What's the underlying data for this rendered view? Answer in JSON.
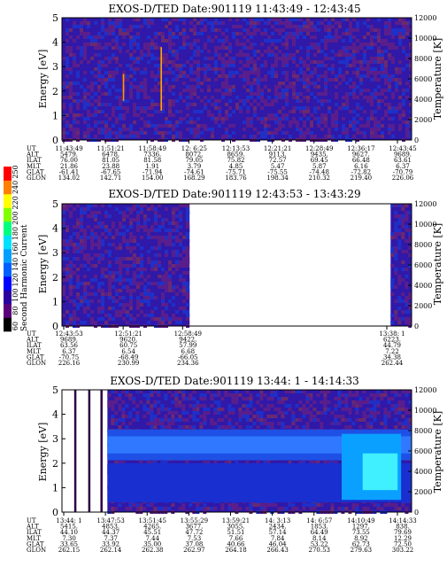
{
  "colorbar": {
    "title": "Second Harmonic Current",
    "ticks": [
      "60",
      "80",
      "100",
      "120",
      "140",
      "160",
      "180",
      "200",
      "220",
      "240",
      "250"
    ],
    "colors": [
      "#000000",
      "#5a007a",
      "#2a00a0",
      "#0000ff",
      "#0060ff",
      "#00a0ff",
      "#00e0ff",
      "#00ff80",
      "#80ff00",
      "#ffff00",
      "#ff8000",
      "#ff0000"
    ]
  },
  "chart_data": [
    {
      "type": "heatmap",
      "title": "EXOS-D/TED   Date:901119   11:43:49 - 12:43:45",
      "ylabel": "Energy [eV]",
      "y2label": "Temperature [K]",
      "ylim": [
        0,
        5
      ],
      "y2lim": [
        0,
        12000
      ],
      "yticks": [
        "0",
        "1",
        "2",
        "3",
        "4",
        "5"
      ],
      "y2ticks": [
        "0",
        "2000",
        "4000",
        "6000",
        "8000",
        "10000",
        "12000"
      ],
      "data_segments": [
        [
          0,
          1
        ]
      ],
      "features": [
        {
          "t": 0.174,
          "e_from": 1.6,
          "e_to": 2.7,
          "color": "#ff9900"
        },
        {
          "t": 0.282,
          "e_from": 1.2,
          "e_to": 3.8,
          "color": "#ffaa00"
        }
      ],
      "table": {
        "labels": [
          "UT",
          "ALT",
          "ILAT",
          "MLT",
          "GLAT",
          "GLON"
        ],
        "columns": [
          [
            "11:43:49",
            "5479.",
            "76.00",
            "21.86",
            "-61.41",
            "134.02"
          ],
          [
            "11:51:21",
            "6478.",
            "81.05",
            "23.88",
            "-67.65",
            "142.71"
          ],
          [
            "11:58:49",
            "7336.",
            "81.58",
            "1.91",
            "-71.94",
            "154.00"
          ],
          [
            "12: 6:25",
            "8072.",
            "79.05",
            "3.79",
            "-74.61",
            "168.29"
          ],
          [
            "12:13:53",
            "8659.",
            "75.82",
            "4.85",
            "-75.71",
            "183.76"
          ],
          [
            "12:21:21",
            "9113.",
            "72.57",
            "5.47",
            "-75.55",
            "198.34"
          ],
          [
            "12:28:49",
            "9435.",
            "69.45",
            "5.87",
            "-74.48",
            "210.32"
          ],
          [
            "12:36:17",
            "9627.",
            "66.48",
            "6.16",
            "-72.82",
            "219.40"
          ],
          [
            "12:43:45",
            "9689.",
            "63.61",
            "6.37",
            "-70.79",
            "226.06"
          ]
        ]
      }
    },
    {
      "type": "heatmap",
      "title": "EXOS-D/TED   Date:901119   12:43:53 - 13:43:29",
      "ylabel": "Energy [eV]",
      "y2label": "Temperature [K]",
      "ylim": [
        0,
        5
      ],
      "y2lim": [
        0,
        12000
      ],
      "yticks": [
        "0",
        "1",
        "2",
        "3",
        "4",
        "5"
      ],
      "y2ticks": [
        "0",
        "2000",
        "4000",
        "6000",
        "8000",
        "10000",
        "12000"
      ],
      "data_segments": [
        [
          0,
          0.365
        ],
        [
          0.94,
          1
        ]
      ],
      "features": [],
      "table": {
        "labels": [
          "UT",
          "ALT",
          "ILAT",
          "MLT",
          "GLAT",
          "GLON"
        ],
        "columns": [
          [
            "12:43:53",
            "9689.",
            "63.56",
            "6.37",
            "-70.75",
            "226.16"
          ],
          [
            "12:51:21",
            "9620.",
            "60.75",
            "6.54",
            "-68.49",
            "230.99"
          ],
          [
            "12:58:49",
            "9422.",
            "57.99",
            "6.68",
            "-66.05",
            "234.36"
          ],
          [
            "13:38: 1",
            "6223.",
            "44.79",
            "7.22",
            "34.38",
            "262.44"
          ]
        ]
      }
    },
    {
      "type": "heatmap",
      "title": "EXOS-D/TED   Date:901119   13:44: 1 - 14:14:33",
      "ylabel": "Energy [eV]",
      "y2label": "Temperature [K]",
      "ylim": [
        0,
        5
      ],
      "y2lim": [
        0,
        12000
      ],
      "yticks": [
        "0",
        "1",
        "2",
        "3",
        "4",
        "5"
      ],
      "y2ticks": [
        "0",
        "2000",
        "4000",
        "6000",
        "8000",
        "10000",
        "12000"
      ],
      "data_segments": [
        [
          0.13,
          1
        ]
      ],
      "features": [],
      "band": {
        "energy_center": 2.75,
        "energy_halfwidth": 0.35
      },
      "table": {
        "labels": [
          "UT",
          "ALT",
          "ILAT",
          "MLT",
          "GLAT",
          "GLON"
        ],
        "columns": [
          [
            "13:44: 1",
            "5415.",
            "44.10",
            "7.30",
            "33.65",
            "262.15"
          ],
          [
            "13:47:53",
            "4853.",
            "44.37",
            "7.37",
            "33.92",
            "262.14"
          ],
          [
            "13:51:45",
            "4265.",
            "45.51",
            "7.44",
            "35.00",
            "262.38"
          ],
          [
            "13:55:29",
            "3677.",
            "47.72",
            "7.53",
            "37.08",
            "262.97"
          ],
          [
            "13:59:21",
            "3055.",
            "51.51",
            "7.66",
            "40.66",
            "264.18"
          ],
          [
            "14: 3:13",
            "2434.",
            "57.14",
            "7.84",
            "46.04",
            "266.43"
          ],
          [
            "14: 6:57",
            "1853.",
            "64.49",
            "8.14",
            "53.22",
            "270.53"
          ],
          [
            "14:10:49",
            "1297.",
            "73.55",
            "8.92",
            "62.73",
            "279.63"
          ],
          [
            "14:14:33",
            "838.",
            "79.69",
            "12.29",
            "72.50",
            "303.22"
          ]
        ]
      }
    }
  ]
}
